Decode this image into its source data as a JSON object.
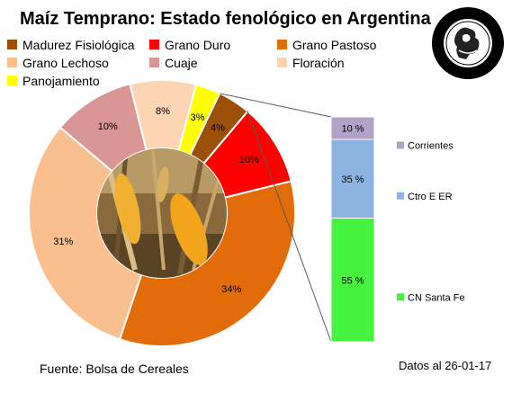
{
  "title": "Maíz Temprano: Estado fenológico en Argentina",
  "source": "Fuente: Bolsa de Cereales",
  "date": "Datos al 26-01-17",
  "seal": {
    "lines": [
      "Constantia",
      "et",
      "Labore",
      "Buenos Aires",
      "1854"
    ]
  },
  "chart_data": [
    {
      "type": "pie",
      "subtype": "doughnut",
      "title": "Maíz Temprano: Estado fenológico en Argentina",
      "center_image": "corn-cobs-photo",
      "legend_position": "top-left",
      "slices": [
        {
          "name": "Madurez Fisiológica",
          "value": 4,
          "label": "4%",
          "color": "#9c5007"
        },
        {
          "name": "Grano Duro",
          "value": 10,
          "label": "10%",
          "color": "#ff0000"
        },
        {
          "name": "Grano Pastoso",
          "value": 34,
          "label": "34%",
          "color": "#e36c0a"
        },
        {
          "name": "Grano Lechoso",
          "value": 31,
          "label": "31%",
          "color": "#fabf8f"
        },
        {
          "name": "Cuaje",
          "value": 10,
          "label": "10%",
          "color": "#d99694"
        },
        {
          "name": "Floración",
          "value": 8,
          "label": "8%",
          "color": "#fcd5b5"
        },
        {
          "name": "Panojamiento",
          "value": 3,
          "label": "3%",
          "color": "#ffff00"
        }
      ]
    },
    {
      "type": "bar",
      "subtype": "stacked-100",
      "breakdown_of": "Madurez Fisiológica",
      "legend_position": "right",
      "series": [
        {
          "name": "CN Santa Fe",
          "value": 55,
          "label": "55 %",
          "color": "#45f33f"
        },
        {
          "name": "Ctro E ER",
          "value": 35,
          "label": "35 %",
          "color": "#8db3e2"
        },
        {
          "name": "Corrientes",
          "value": 10,
          "label": "10 %",
          "color": "#b3a2c7"
        }
      ]
    }
  ]
}
